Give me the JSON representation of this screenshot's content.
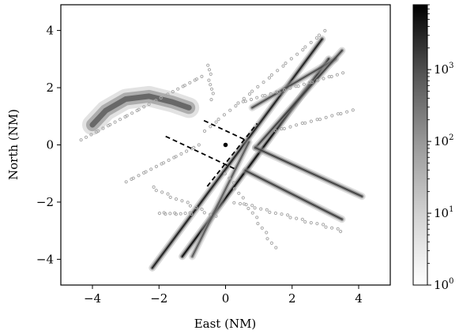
{
  "chart_data": {
    "type": "heatmap",
    "title": "",
    "xlabel": "East (NM)",
    "ylabel": "North (NM)",
    "xlim": [
      -4.95,
      4.95
    ],
    "ylim": [
      -4.9,
      4.9
    ],
    "xticks": [
      -4,
      -2,
      0,
      2,
      4
    ],
    "yticks": [
      -4,
      -2,
      0,
      2,
      4
    ],
    "xtick_labels": [
      "−4",
      "−2",
      "0",
      "2",
      "4"
    ],
    "ytick_labels": [
      "−4",
      "−2",
      "0",
      "2",
      "4"
    ],
    "grid": false,
    "colorbar": {
      "scale": "log",
      "range": [
        1,
        8000
      ],
      "ticks": [
        1,
        10,
        100,
        1000
      ],
      "tick_labels": [
        "10",
        "10",
        "10",
        "10"
      ],
      "tick_exponents": [
        "0",
        "1",
        "2",
        "3"
      ],
      "colormap": "Greys"
    },
    "density_features": [
      {
        "shape": "arc",
        "points": [
          [
            -4.0,
            0.7
          ],
          [
            -3.6,
            1.2
          ],
          [
            -3.0,
            1.6
          ],
          [
            -2.3,
            1.7
          ],
          [
            -1.6,
            1.5
          ],
          [
            -1.1,
            1.3
          ]
        ],
        "peak": 200
      },
      {
        "shape": "line",
        "from": [
          -2.2,
          -4.3
        ],
        "to": [
          2.9,
          3.7
        ],
        "peak": 3000
      },
      {
        "shape": "line",
        "from": [
          -1.3,
          -3.9
        ],
        "to": [
          3.1,
          3.0
        ],
        "peak": 6000
      },
      {
        "shape": "line",
        "from": [
          0.8,
          1.3
        ],
        "to": [
          3.3,
          3.0
        ],
        "peak": 500
      },
      {
        "shape": "line",
        "from": [
          0.9,
          -0.1
        ],
        "to": [
          3.5,
          3.3
        ],
        "peak": 800
      },
      {
        "shape": "line",
        "from": [
          0.9,
          -0.1
        ],
        "to": [
          4.1,
          -1.8
        ],
        "peak": 800
      },
      {
        "shape": "line",
        "from": [
          0.6,
          -0.9
        ],
        "to": [
          3.5,
          -2.6
        ],
        "peak": 800
      },
      {
        "shape": "line",
        "from": [
          -1.0,
          -3.9
        ],
        "to": [
          0.7,
          0.1
        ],
        "peak": 300
      }
    ],
    "scatter_markers": [
      {
        "shape": "line",
        "from": [
          -4.3,
          0.2
        ],
        "to": [
          -0.7,
          2.4
        ],
        "count": 30
      },
      {
        "shape": "line",
        "from": [
          -3.0,
          -1.3
        ],
        "to": [
          -0.8,
          0.0
        ],
        "count": 18
      },
      {
        "shape": "line",
        "from": [
          -0.6,
          0.5
        ],
        "to": [
          3.0,
          4.0
        ],
        "count": 26
      },
      {
        "shape": "line",
        "from": [
          0.5,
          1.5
        ],
        "to": [
          3.5,
          2.5
        ],
        "count": 22
      },
      {
        "shape": "line",
        "from": [
          0.0,
          -1.0
        ],
        "to": [
          1.5,
          -3.6
        ],
        "count": 16
      },
      {
        "shape": "line",
        "from": [
          -2.2,
          -1.5
        ],
        "to": [
          -0.3,
          -2.5
        ],
        "count": 14
      },
      {
        "shape": "line",
        "from": [
          1.5,
          0.5
        ],
        "to": [
          3.8,
          1.2
        ],
        "count": 16
      },
      {
        "shape": "line",
        "from": [
          0.3,
          -2.0
        ],
        "to": [
          3.5,
          -3.0
        ],
        "count": 22
      },
      {
        "shape": "line",
        "from": [
          -2.0,
          -2.4
        ],
        "to": [
          -1.0,
          -2.4
        ],
        "count": 10
      },
      {
        "shape": "line",
        "from": [
          -0.5,
          2.8
        ],
        "to": [
          -0.4,
          1.6
        ],
        "count": 8
      }
    ],
    "annotations": [
      {
        "type": "dashed-line",
        "from": [
          -0.65,
          0.85
        ],
        "to": [
          0.55,
          0.2
        ]
      },
      {
        "type": "dashed-line",
        "from": [
          -1.8,
          0.3
        ],
        "to": [
          0.3,
          -0.85
        ]
      },
      {
        "type": "dashed-line",
        "from": [
          -0.55,
          -1.45
        ],
        "to": [
          0.95,
          0.75
        ]
      },
      {
        "type": "point",
        "at": [
          0.0,
          0.0
        ]
      }
    ]
  }
}
